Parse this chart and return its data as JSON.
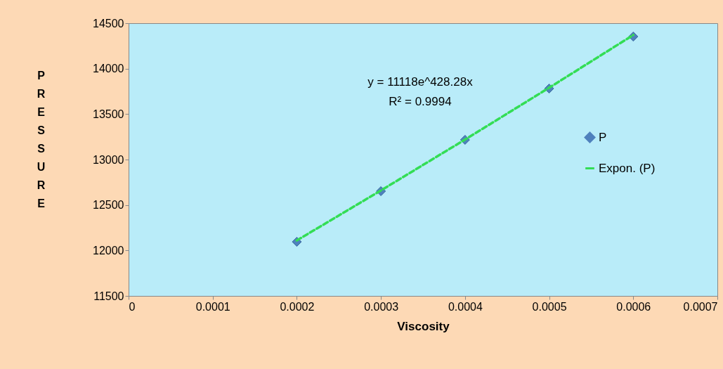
{
  "chart_data": {
    "type": "scatter",
    "xlabel": "Viscosity",
    "ylabel": "PRESSURE",
    "x": [
      0.0002,
      0.0003,
      0.0004,
      0.0005,
      0.0006
    ],
    "series": [
      {
        "name": "P",
        "color": "#4f81bd",
        "marker": "diamond",
        "values": [
          12095,
          12652,
          13217,
          13781,
          14353
        ]
      },
      {
        "name": "Expon. (P)",
        "type": "line",
        "color": "#33dd55",
        "marker": "none",
        "line_style": "dashed",
        "x": [
          0.0002,
          0.0003,
          0.0004,
          0.0005,
          0.0006
        ],
        "values": [
          12110,
          12660,
          13220,
          13790,
          14370
        ]
      }
    ],
    "xlim": [
      0,
      0.0007
    ],
    "xticks": [
      0,
      0.0001,
      0.0002,
      0.0003,
      0.0004,
      0.0005,
      0.0006,
      0.0007
    ],
    "ylim": [
      11500,
      14500
    ],
    "yticks": [
      11500,
      12000,
      12500,
      13000,
      13500,
      14000,
      14500
    ],
    "grid": false,
    "legend": "right",
    "annotations": [
      "y = 11118e^428.28x",
      "R² = 0.9994"
    ]
  }
}
